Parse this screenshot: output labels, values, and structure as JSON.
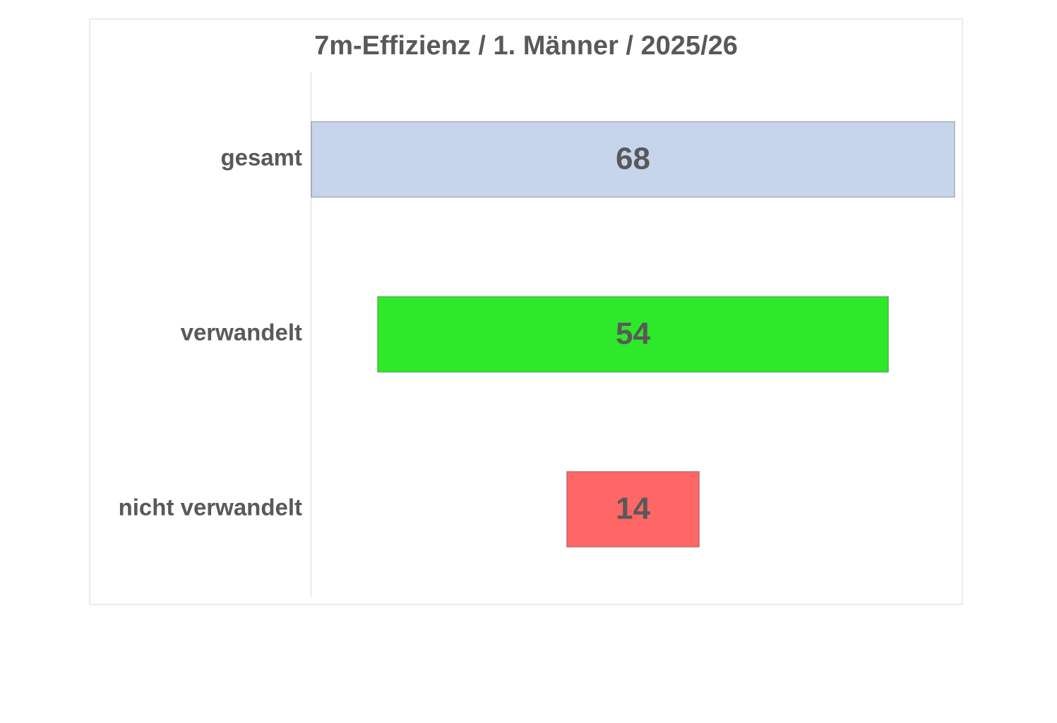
{
  "chart_data": {
    "type": "funnel",
    "title": "7m-Effizienz / 1. Männer / 2025/26",
    "categories": [
      "gesamt",
      "verwandelt",
      "nicht verwandelt"
    ],
    "values": [
      68,
      54,
      14
    ],
    "colors": [
      "#c6d5eb",
      "#2ee82a",
      "#ff6666"
    ]
  }
}
